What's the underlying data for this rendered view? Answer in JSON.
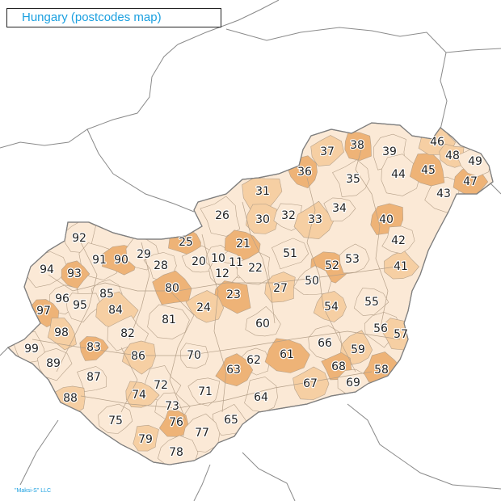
{
  "title": "Hungary (postcodes map)",
  "credit": "\"Maksi-S\" LLC",
  "colors": {
    "light": "#fbe9d6",
    "medium": "#f6cfa3",
    "dark": "#eeb377",
    "border": "#b5a089",
    "outer_border": "#8a8a8a",
    "title": "#1ba0e0"
  },
  "postcodes": [
    {
      "code": "26",
      "shade": "light"
    },
    {
      "code": "31",
      "shade": "medium"
    },
    {
      "code": "30",
      "shade": "medium"
    },
    {
      "code": "32",
      "shade": "light"
    },
    {
      "code": "33",
      "shade": "medium"
    },
    {
      "code": "34",
      "shade": "light"
    },
    {
      "code": "35",
      "shade": "light"
    },
    {
      "code": "36",
      "shade": "dark"
    },
    {
      "code": "37",
      "shade": "medium"
    },
    {
      "code": "38",
      "shade": "dark"
    },
    {
      "code": "39",
      "shade": "light"
    },
    {
      "code": "40",
      "shade": "dark"
    },
    {
      "code": "41",
      "shade": "medium"
    },
    {
      "code": "42",
      "shade": "light"
    },
    {
      "code": "43",
      "shade": "light"
    },
    {
      "code": "44",
      "shade": "light"
    },
    {
      "code": "45",
      "shade": "dark"
    },
    {
      "code": "46",
      "shade": "medium"
    },
    {
      "code": "47",
      "shade": "dark"
    },
    {
      "code": "48",
      "shade": "medium"
    },
    {
      "code": "49",
      "shade": "light"
    },
    {
      "code": "92",
      "shade": "light"
    },
    {
      "code": "91",
      "shade": "light"
    },
    {
      "code": "90",
      "shade": "dark"
    },
    {
      "code": "29",
      "shade": "light"
    },
    {
      "code": "28",
      "shade": "light"
    },
    {
      "code": "25",
      "shade": "dark"
    },
    {
      "code": "20",
      "shade": "light"
    },
    {
      "code": "10",
      "shade": "light"
    },
    {
      "code": "11",
      "shade": "light"
    },
    {
      "code": "12",
      "shade": "light"
    },
    {
      "code": "21",
      "shade": "dark"
    },
    {
      "code": "22",
      "shade": "light"
    },
    {
      "code": "51",
      "shade": "light"
    },
    {
      "code": "52",
      "shade": "dark"
    },
    {
      "code": "53",
      "shade": "light"
    },
    {
      "code": "94",
      "shade": "light"
    },
    {
      "code": "93",
      "shade": "dark"
    },
    {
      "code": "85",
      "shade": "light"
    },
    {
      "code": "80",
      "shade": "dark"
    },
    {
      "code": "23",
      "shade": "dark"
    },
    {
      "code": "27",
      "shade": "medium"
    },
    {
      "code": "50",
      "shade": "light"
    },
    {
      "code": "96",
      "shade": "light"
    },
    {
      "code": "95",
      "shade": "light"
    },
    {
      "code": "97",
      "shade": "dark"
    },
    {
      "code": "84",
      "shade": "medium"
    },
    {
      "code": "24",
      "shade": "medium"
    },
    {
      "code": "54",
      "shade": "medium"
    },
    {
      "code": "55",
      "shade": "light"
    },
    {
      "code": "81",
      "shade": "light"
    },
    {
      "code": "60",
      "shade": "light"
    },
    {
      "code": "98",
      "shade": "medium"
    },
    {
      "code": "82",
      "shade": "light"
    },
    {
      "code": "56",
      "shade": "light"
    },
    {
      "code": "57",
      "shade": "medium"
    },
    {
      "code": "99",
      "shade": "light"
    },
    {
      "code": "83",
      "shade": "dark"
    },
    {
      "code": "86",
      "shade": "medium"
    },
    {
      "code": "70",
      "shade": "light"
    },
    {
      "code": "62",
      "shade": "light"
    },
    {
      "code": "61",
      "shade": "dark"
    },
    {
      "code": "66",
      "shade": "light"
    },
    {
      "code": "59",
      "shade": "medium"
    },
    {
      "code": "89",
      "shade": "light"
    },
    {
      "code": "63",
      "shade": "dark"
    },
    {
      "code": "68",
      "shade": "dark"
    },
    {
      "code": "58",
      "shade": "dark"
    },
    {
      "code": "87",
      "shade": "light"
    },
    {
      "code": "72",
      "shade": "light"
    },
    {
      "code": "67",
      "shade": "medium"
    },
    {
      "code": "69",
      "shade": "light"
    },
    {
      "code": "88",
      "shade": "medium"
    },
    {
      "code": "74",
      "shade": "medium"
    },
    {
      "code": "71",
      "shade": "light"
    },
    {
      "code": "64",
      "shade": "light"
    },
    {
      "code": "73",
      "shade": "light"
    },
    {
      "code": "75",
      "shade": "light"
    },
    {
      "code": "76",
      "shade": "dark"
    },
    {
      "code": "65",
      "shade": "light"
    },
    {
      "code": "77",
      "shade": "light"
    },
    {
      "code": "79",
      "shade": "medium"
    },
    {
      "code": "78",
      "shade": "light"
    }
  ]
}
